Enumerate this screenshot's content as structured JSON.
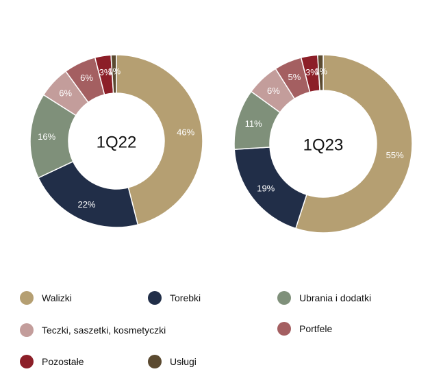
{
  "chart_data": [
    {
      "type": "pie",
      "center_label": "1Q22",
      "categories": [
        "Walizki",
        "Torebki",
        "Ubrania i dodatki",
        "Teczki, saszetki, kosmetyczki",
        "Portfele",
        "Pozostałe",
        "Usługi"
      ],
      "values": [
        46,
        22,
        16,
        6,
        6,
        3,
        1
      ],
      "labels": [
        "46%",
        "22%",
        "16%",
        "6%",
        "6%",
        "3%",
        "1%"
      ]
    },
    {
      "type": "pie",
      "center_label": "1Q23",
      "categories": [
        "Walizki",
        "Torebki",
        "Ubrania i dodatki",
        "Teczki, saszetki, kosmetyczki",
        "Portfele",
        "Pozostałe",
        "Usługi"
      ],
      "values": [
        55,
        19,
        11,
        6,
        5,
        3,
        1
      ],
      "labels": [
        "55%",
        "19%",
        "11%",
        "6%",
        "5%",
        "3%",
        "1%"
      ]
    }
  ],
  "legend": [
    {
      "label": "Walizki",
      "color": "#b59f72"
    },
    {
      "label": "Torebki",
      "color": "#212e48"
    },
    {
      "label": "Ubrania i dodatki",
      "color": "#7f907a"
    },
    {
      "label": "Teczki, saszetki, kosmetyczki",
      "color": "#c39d9b"
    },
    {
      "label": "Portfele",
      "color": "#a45f61"
    },
    {
      "label": "Pozostałe",
      "color": "#8c1f28"
    },
    {
      "label": "Usługi",
      "color": "#5b4a30"
    }
  ]
}
